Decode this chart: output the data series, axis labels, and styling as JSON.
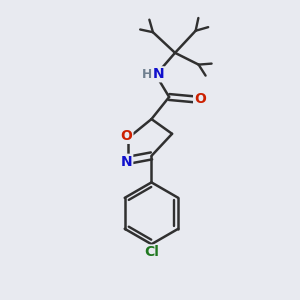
{
  "background_color": "#e8eaf0",
  "atom_colors": {
    "C": "#303030",
    "H": "#708090",
    "N": "#1010cc",
    "O": "#cc2000",
    "Cl": "#207820"
  },
  "bond_color": "#303030",
  "bond_width": 1.8,
  "figsize": [
    3.0,
    3.0
  ],
  "dpi": 100
}
